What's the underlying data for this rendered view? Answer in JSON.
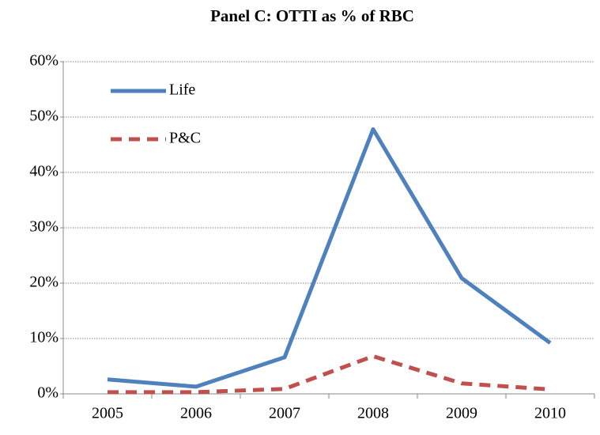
{
  "chart_data": {
    "type": "line",
    "title": "Panel C: OTTI as % of RBC",
    "categories": [
      "2005",
      "2006",
      "2007",
      "2008",
      "2009",
      "2010"
    ],
    "series": [
      {
        "name": "Life",
        "color": "#4f81bd",
        "dash": "solid",
        "values": [
          2.6,
          1.3,
          6.6,
          47.8,
          20.9,
          9.2
        ]
      },
      {
        "name": "P&C",
        "color": "#c0504d",
        "dash": "dashed",
        "values": [
          0.3,
          0.3,
          0.9,
          6.8,
          1.9,
          0.8
        ]
      }
    ],
    "ylim": [
      0,
      60
    ],
    "yticks": [
      {
        "value": 0,
        "label": "0%"
      },
      {
        "value": 10,
        "label": "10%"
      },
      {
        "value": 20,
        "label": "20%"
      },
      {
        "value": 30,
        "label": "30%"
      },
      {
        "value": 40,
        "label": "40%"
      },
      {
        "value": 50,
        "label": "50%"
      },
      {
        "value": 60,
        "label": "60%"
      }
    ],
    "grid": true,
    "legend": "upper left"
  }
}
